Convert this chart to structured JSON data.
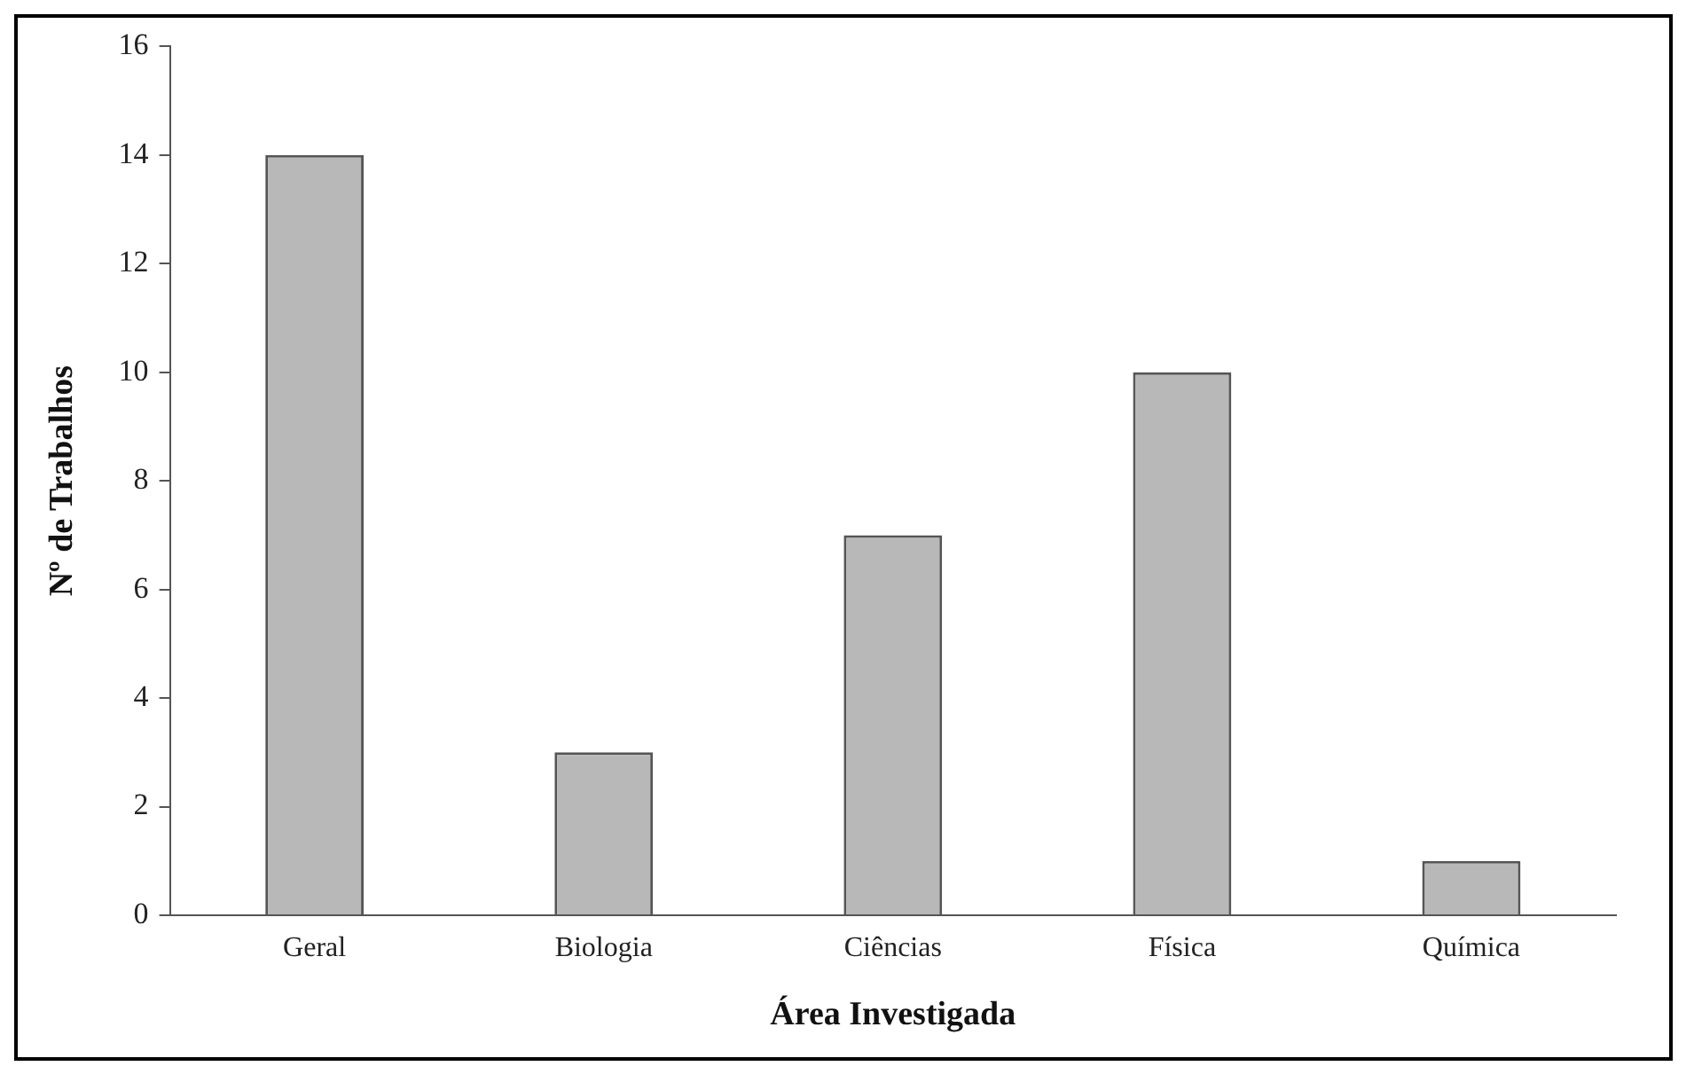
{
  "chart_data": {
    "type": "bar",
    "xlabel": "Área Investigada",
    "ylabel": "Nº de Trabalhos",
    "categories": [
      "Geral",
      "Biologia",
      "Ciências",
      "Física",
      "Química"
    ],
    "values": [
      14,
      3,
      7,
      10,
      1
    ],
    "color": "#b8b8b8",
    "ylim": [
      0,
      16
    ],
    "yticks": [
      0,
      2,
      4,
      6,
      8,
      10,
      12,
      14,
      16
    ],
    "grid": false,
    "legend": false
  }
}
